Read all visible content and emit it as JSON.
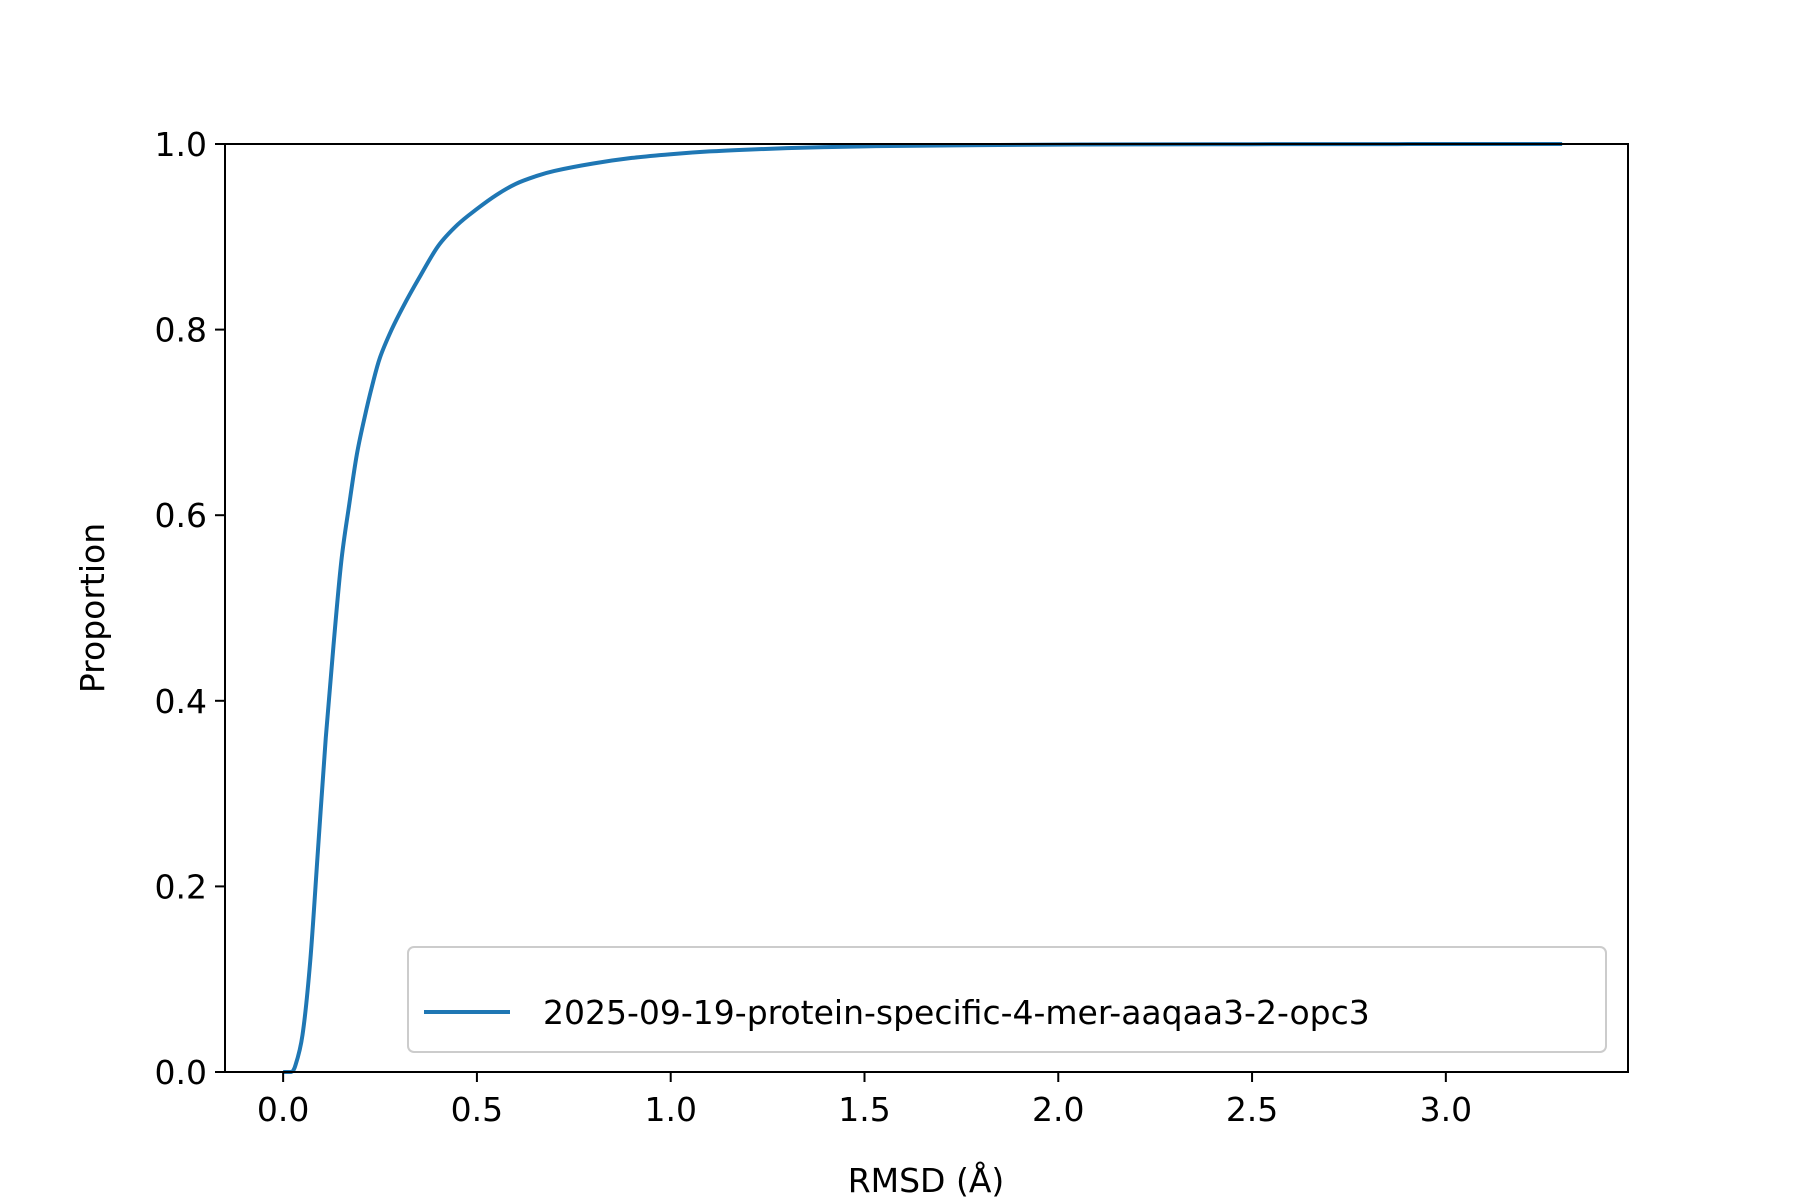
{
  "chart_data": {
    "type": "line",
    "title": "",
    "xlabel": "RMSD (Å)",
    "ylabel": "Proportion",
    "xlim": [
      -0.15,
      3.47
    ],
    "ylim": [
      0.0,
      1.0
    ],
    "x_ticks": [
      0.0,
      0.5,
      1.0,
      1.5,
      2.0,
      2.5,
      3.0
    ],
    "x_tick_labels": [
      "0.0",
      "0.5",
      "1.0",
      "1.5",
      "2.0",
      "2.5",
      "3.0"
    ],
    "y_ticks": [
      0.0,
      0.2,
      0.4,
      0.6,
      0.8,
      1.0
    ],
    "y_tick_labels": [
      "0.0",
      "0.2",
      "0.4",
      "0.6",
      "0.8",
      "1.0"
    ],
    "grid": false,
    "legend_position": "lower-right",
    "series": [
      {
        "name": "2025-09-19-protein-specific-4-mer-aaqaa3-2-opc3",
        "color": "#1f77b4",
        "x": [
          0.0,
          0.02,
          0.03,
          0.05,
          0.07,
          0.09,
          0.11,
          0.13,
          0.15,
          0.17,
          0.19,
          0.21,
          0.23,
          0.25,
          0.28,
          0.31,
          0.35,
          0.4,
          0.45,
          0.5,
          0.55,
          0.6,
          0.65,
          0.7,
          0.8,
          0.9,
          1.0,
          1.1,
          1.2,
          1.3,
          1.4,
          1.5,
          1.6,
          1.8,
          2.0,
          2.2,
          2.5,
          2.8,
          3.1,
          3.3
        ],
        "y": [
          0.0,
          0.0,
          0.005,
          0.04,
          0.12,
          0.24,
          0.36,
          0.46,
          0.55,
          0.61,
          0.665,
          0.705,
          0.74,
          0.77,
          0.8,
          0.825,
          0.855,
          0.89,
          0.913,
          0.93,
          0.945,
          0.957,
          0.965,
          0.971,
          0.979,
          0.985,
          0.989,
          0.992,
          0.994,
          0.9955,
          0.9966,
          0.9975,
          0.998,
          0.9988,
          0.9993,
          0.9996,
          0.9998,
          0.9999,
          1.0,
          1.0
        ]
      }
    ]
  }
}
